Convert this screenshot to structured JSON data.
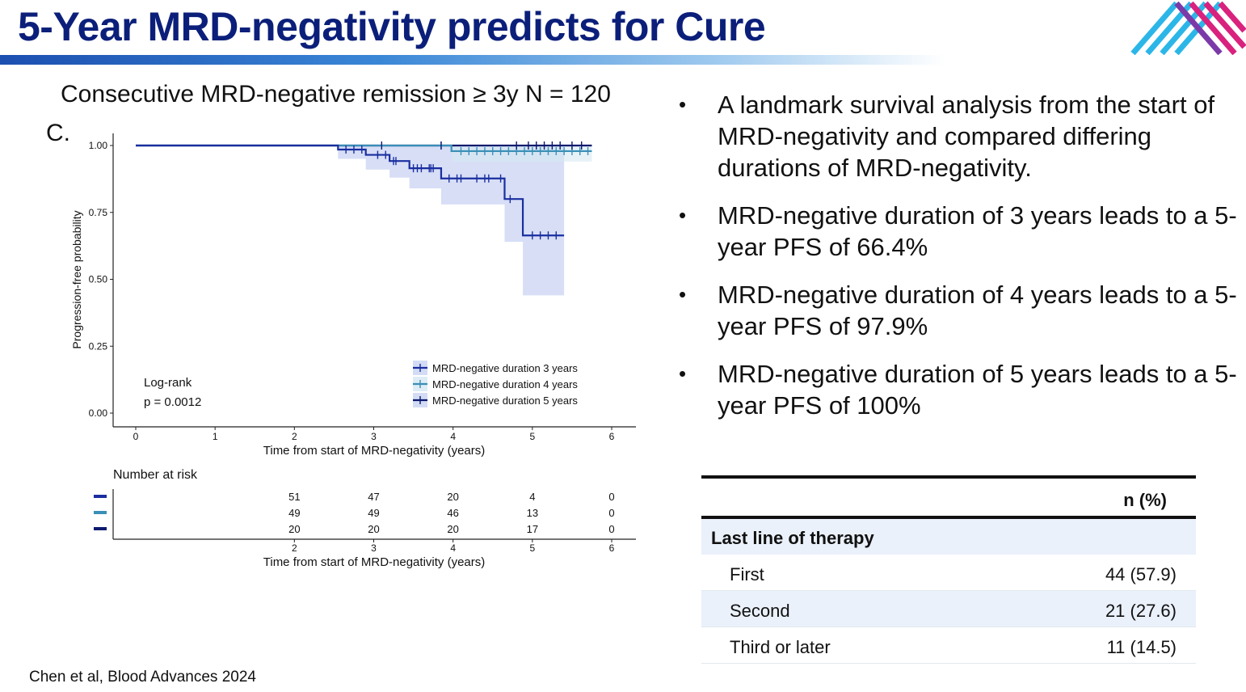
{
  "slide": {
    "title": "5-Year MRD-negativity predicts for Cure",
    "subtitle": "Consecutive MRD-negative remission ≥ 3y N = 120",
    "panel_label": "C.",
    "citation": "Chen et al, Blood Advances 2024"
  },
  "colors": {
    "title": "#0b1f7a",
    "s3": "#1a2ea0",
    "s4": "#3a8fb7",
    "s5": "#0b1a6e",
    "band": "#c9d3f3"
  },
  "bullets": [
    "A landmark survival analysis from the start of MRD-negativity and compared differing durations of MRD-negativity.",
    "MRD-negative duration of 3 years leads to a 5-year PFS of 66.4%",
    "MRD-negative duration of 4 years leads to a 5-year PFS of 97.9%",
    "MRD-negative duration of 5 years leads to a 5-year PFS of 100%"
  ],
  "table": {
    "header": "n (%)",
    "section": "Last line of therapy",
    "rows": [
      {
        "label": "First",
        "value": "44 (57.9)"
      },
      {
        "label": "Second",
        "value": "21 (27.6)"
      },
      {
        "label": "Third or later",
        "value": "11 (14.5)"
      }
    ]
  },
  "chart_data": {
    "type": "line",
    "title": "",
    "xlabel": "Time from start of MRD-negativity (years)",
    "ylabel": "Progression-free probability",
    "xlim": [
      0,
      6
    ],
    "ylim": [
      0,
      1
    ],
    "x_ticks": [
      "0",
      "1",
      "2",
      "3",
      "4",
      "5",
      "6"
    ],
    "y_ticks": [
      "0.00",
      "0.25",
      "0.50",
      "0.75",
      "1.00"
    ],
    "legend_position": "bottom-right",
    "annotation": [
      "Log-rank",
      "p = 0.0012"
    ],
    "series": [
      {
        "name": "MRD-negative duration 3 years",
        "steps": [
          [
            0,
            1.0
          ],
          [
            2.55,
            0.985
          ],
          [
            2.9,
            0.965
          ],
          [
            3.2,
            0.942
          ],
          [
            3.45,
            0.915
          ],
          [
            3.85,
            0.877
          ],
          [
            4.65,
            0.8
          ],
          [
            4.88,
            0.664
          ],
          [
            5.4,
            0.664
          ]
        ],
        "ci_lower": [
          [
            2.55,
            0.95
          ],
          [
            2.9,
            0.91
          ],
          [
            3.2,
            0.88
          ],
          [
            3.45,
            0.84
          ],
          [
            3.85,
            0.78
          ],
          [
            4.65,
            0.64
          ],
          [
            4.88,
            0.44
          ],
          [
            5.4,
            0.44
          ]
        ],
        "ci_upper": [
          [
            2.55,
            1.0
          ],
          [
            5.4,
            1.0
          ]
        ]
      },
      {
        "name": "MRD-negative duration 4 years",
        "steps": [
          [
            0,
            1.0
          ],
          [
            3.98,
            0.979
          ],
          [
            5.75,
            0.979
          ]
        ],
        "ci_lower": [
          [
            3.98,
            0.94
          ],
          [
            5.75,
            0.94
          ]
        ],
        "ci_upper": [
          [
            3.98,
            1.0
          ],
          [
            5.75,
            1.0
          ]
        ]
      },
      {
        "name": "MRD-negative duration 5 years",
        "steps": [
          [
            0,
            1.0
          ],
          [
            5.75,
            1.0
          ]
        ]
      }
    ],
    "risk_table": {
      "title": "Number at risk",
      "x_ticks": [
        "2",
        "3",
        "4",
        "5",
        "6"
      ],
      "xlabel": "Time from start of MRD-negativity (years)",
      "rows": [
        [
          "51",
          "47",
          "20",
          "4",
          "0"
        ],
        [
          "49",
          "49",
          "46",
          "13",
          "0"
        ],
        [
          "20",
          "20",
          "20",
          "17",
          "0"
        ]
      ]
    }
  }
}
